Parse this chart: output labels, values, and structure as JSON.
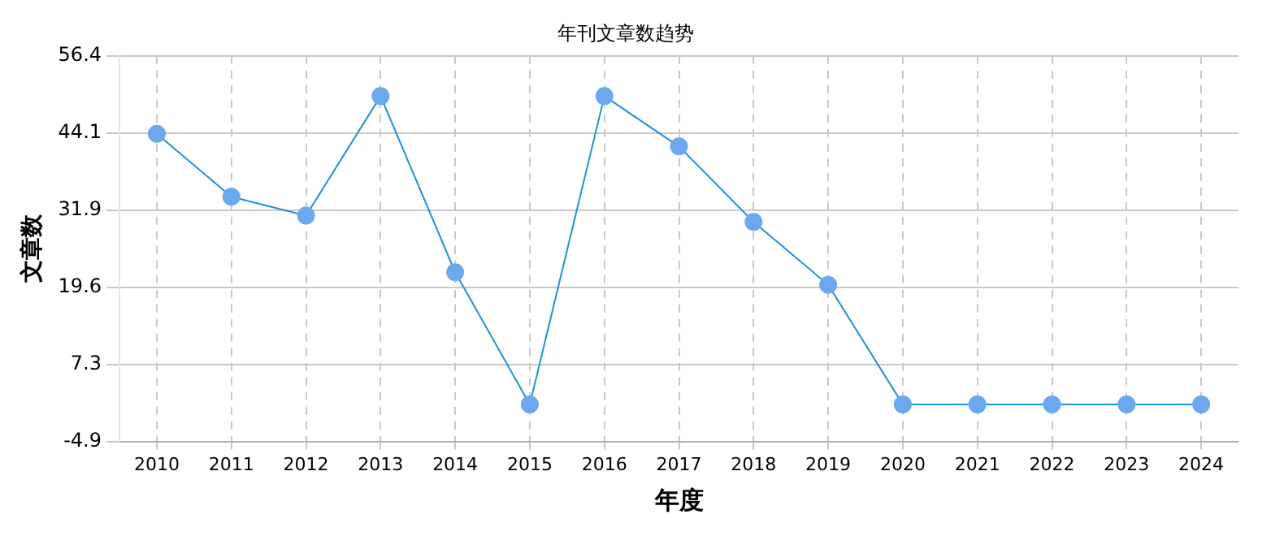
{
  "chart_data": {
    "type": "line",
    "title": "年刊文章数趋势",
    "xlabel": "年度",
    "ylabel": "文章数",
    "categories": [
      "2010",
      "2011",
      "2012",
      "2013",
      "2014",
      "2015",
      "2016",
      "2017",
      "2018",
      "2019",
      "2020",
      "2021",
      "2022",
      "2023",
      "2024"
    ],
    "series": [
      {
        "color": "#1e90e0",
        "values": [
          44,
          34,
          31,
          50,
          22,
          1,
          50,
          42,
          30,
          20,
          1,
          1,
          1,
          1,
          1
        ]
      }
    ],
    "ylim": [
      -4.9,
      56.4
    ],
    "yticks": [
      -4.9,
      7.3,
      19.6,
      31.9,
      44.1,
      56.4
    ],
    "grid": true,
    "marker": "circle",
    "line_style": "solid",
    "legend": false
  }
}
